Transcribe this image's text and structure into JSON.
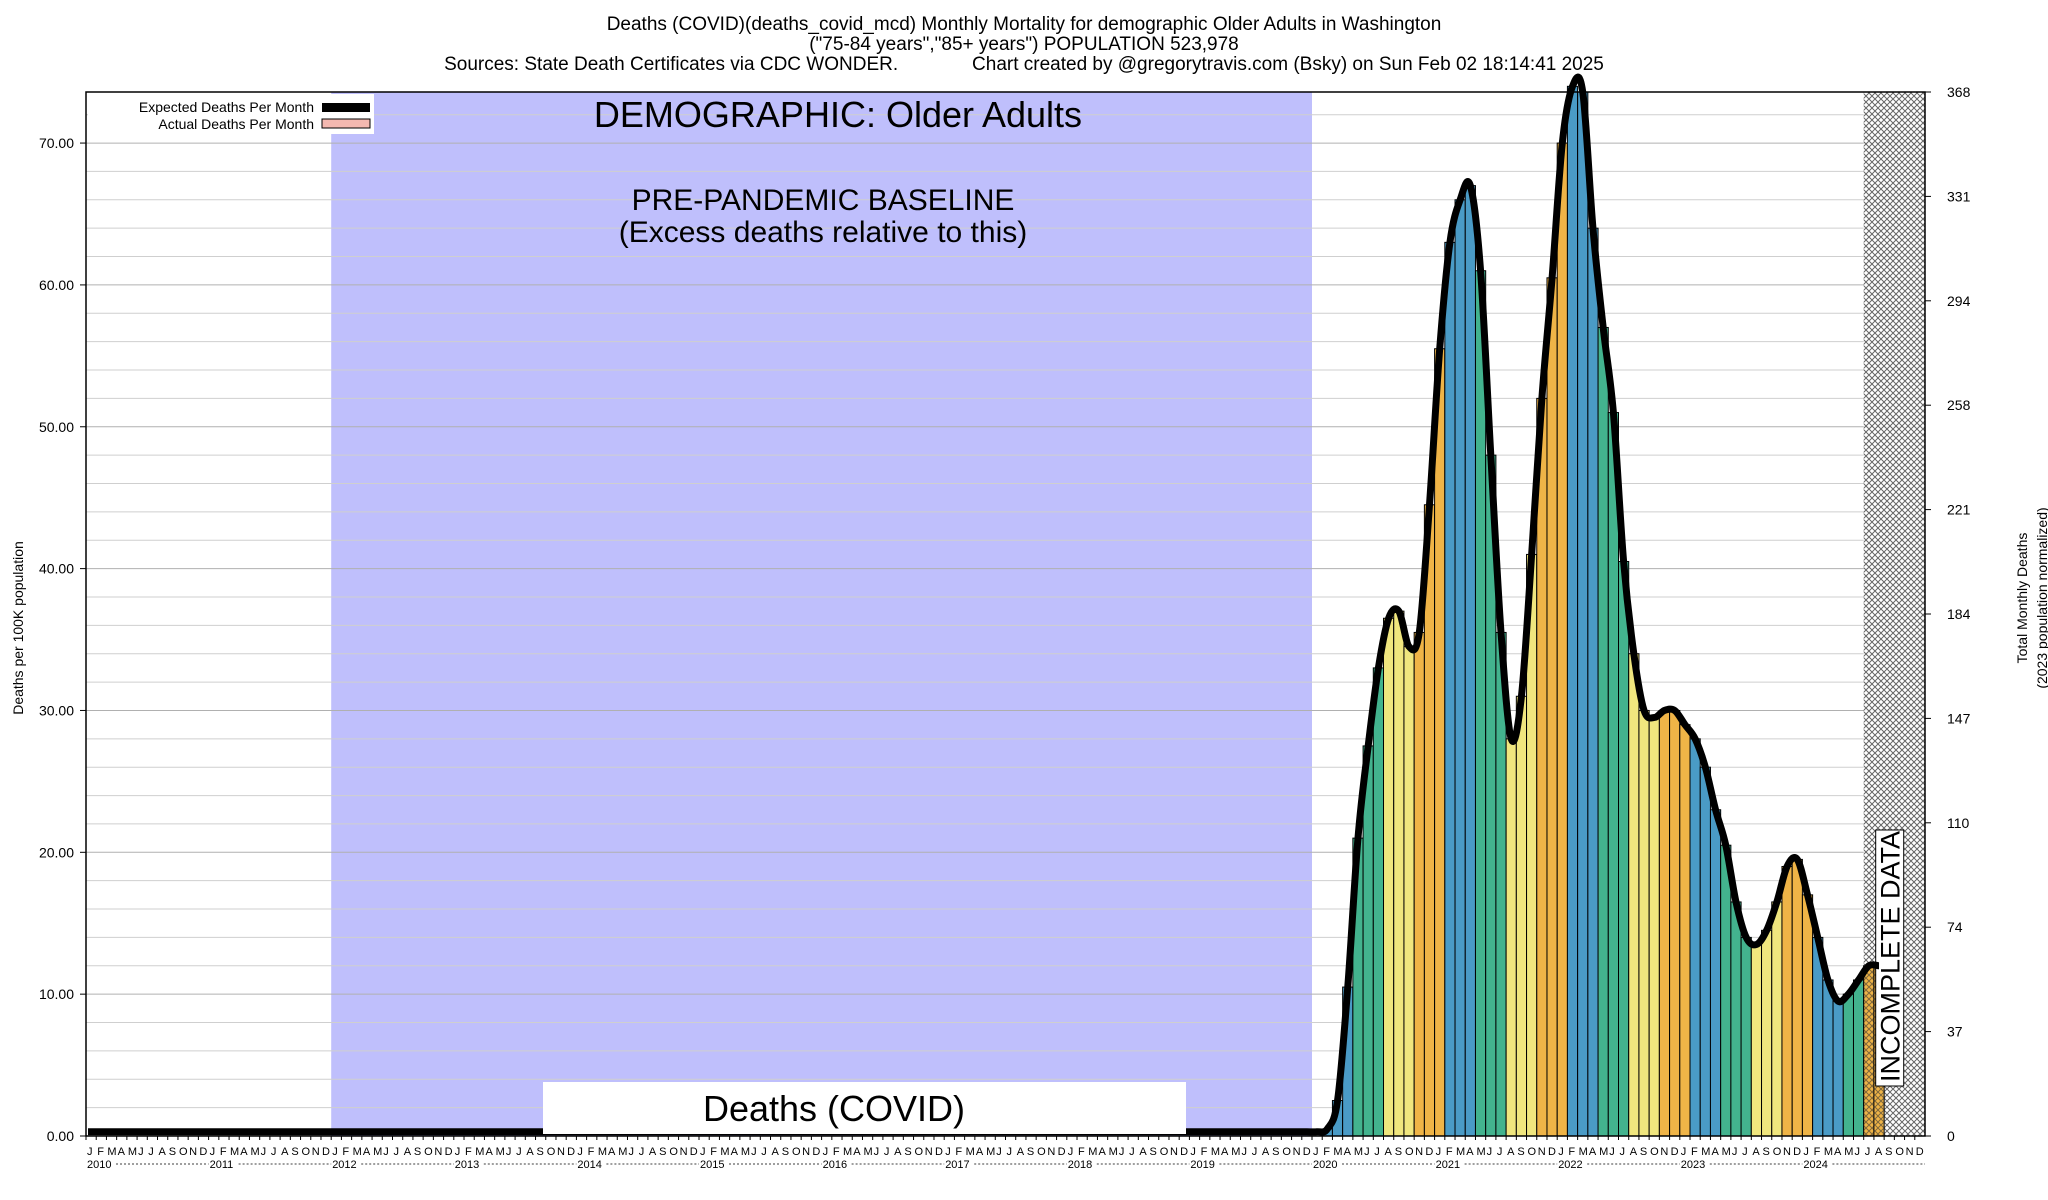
{
  "header": {
    "line1": "Deaths (COVID)(deaths_covid_mcd) Monthly Mortality for demographic Older Adults in Washington",
    "line2": "(\"75-84 years\",\"85+ years\") POPULATION 523,978",
    "line3": "Sources: State Death Certificates via CDC WONDER.              Chart created by @gregorytravis.com (Bsky) on Sun Feb 02 18:14:41 2025"
  },
  "chart_data": {
    "type": "bar",
    "title": "Deaths (COVID)(deaths_covid_mcd) Monthly Mortality for demographic Older Adults in Washington",
    "ylabel": "Deaths per 100K population",
    "y2label": [
      "Total Monthly Deaths",
      "(2023 population normalized)"
    ],
    "ylim": [
      0,
      73.6
    ],
    "y_ticks": [
      "0.00",
      "10.00",
      "20.00",
      "30.00",
      "40.00",
      "50.00",
      "60.00",
      "70.00"
    ],
    "y2_ticks": [
      "0",
      "37",
      "74",
      "110",
      "147",
      "184",
      "221",
      "258",
      "294",
      "331",
      "368"
    ],
    "x_start": "2010-01",
    "month_letters": [
      "J",
      "F",
      "M",
      "A",
      "M",
      "J",
      "J",
      "A",
      "S",
      "O",
      "N",
      "D"
    ],
    "years": [
      "2010",
      "2011",
      "2012",
      "2013",
      "2014",
      "2015",
      "2016",
      "2017",
      "2018",
      "2019",
      "2020",
      "2021",
      "2022",
      "2023",
      "2024"
    ],
    "legend": [
      {
        "label": "Expected Deaths Per Month",
        "color": "#000000"
      },
      {
        "label": "Actual Deaths Per Month",
        "color": "#f4b8b0"
      }
    ],
    "baseline_band": {
      "from": "2012-01",
      "to": "2019-12",
      "color": "#bfbffc"
    },
    "annotations": {
      "demographic": "DEMOGRAPHIC: Older Adults",
      "baseline_line1": "PRE-PANDEMIC BASELINE",
      "baseline_line2": "(Excess deaths relative to this)",
      "metric": "Deaths (COVID)",
      "incomplete": "INCOMPLETE DATA"
    },
    "incomplete_from": "2024-07",
    "season_colors": [
      "#4a9bc6",
      "#43b38e",
      "#f0e67e",
      "#efb447"
    ],
    "values_from_2020_01": [
      0,
      0.5,
      2.5,
      10.5,
      21,
      27.5,
      33,
      36.5,
      37,
      34.5,
      35.5,
      44.5,
      55.5,
      63,
      66,
      67,
      61,
      48,
      35.5,
      28,
      31,
      41,
      52,
      60.5,
      70,
      74,
      73.6,
      64,
      57,
      51,
      40.5,
      34,
      30,
      29.5,
      30,
      30,
      29,
      28,
      26,
      23,
      20.5,
      16.5,
      14,
      13.5,
      14.5,
      16.5,
      19,
      19.5,
      17,
      14,
      11,
      9.5,
      10,
      11,
      12,
      12
    ]
  }
}
